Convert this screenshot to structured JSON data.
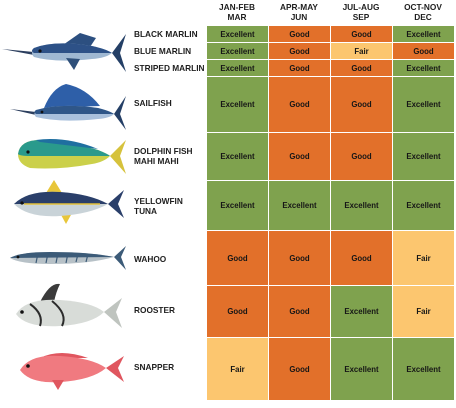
{
  "months": [
    {
      "line1": "JAN-FEB",
      "line2": "MAR"
    },
    {
      "line1": "APR-MAY",
      "line2": "JUN"
    },
    {
      "line1": "JUL-AUG",
      "line2": "SEP"
    },
    {
      "line1": "OCT-NOV",
      "line2": "DEC"
    }
  ],
  "species": [
    {
      "name": "BLACK MARLIN",
      "ratings": [
        "Excellent",
        "Good",
        "Good",
        "Excellent"
      ]
    },
    {
      "name": "BLUE MARLIN",
      "ratings": [
        "Excellent",
        "Good",
        "Fair",
        "Good"
      ]
    },
    {
      "name": "STRIPED MARLIN",
      "ratings": [
        "Excellent",
        "Good",
        "Good",
        "Excellent"
      ]
    },
    {
      "name": "SAILFISH",
      "ratings": [
        "Excellent",
        "Good",
        "Good",
        "Excellent"
      ]
    },
    {
      "name": "DOLPHIN FISH",
      "name2": "MAHI MAHI",
      "ratings": [
        "Excellent",
        "Good",
        "Good",
        "Excellent"
      ]
    },
    {
      "name": "YELLOWFIN",
      "name2": "TUNA",
      "ratings": [
        "Excellent",
        "Excellent",
        "Excellent",
        "Excellent"
      ]
    },
    {
      "name": "WAHOO",
      "ratings": [
        "Good",
        "Good",
        "Good",
        "Fair"
      ]
    },
    {
      "name": "ROOSTER",
      "ratings": [
        "Good",
        "Good",
        "Excellent",
        "Fair"
      ]
    },
    {
      "name": "SNAPPER",
      "ratings": [
        "Fair",
        "Good",
        "Excellent",
        "Excellent"
      ]
    }
  ],
  "colors": {
    "Excellent": "#7fa24e",
    "Good": "#e2702a",
    "Fair": "#fcc66f"
  },
  "illustrations": [
    "blue-marlin-illustration",
    "sailfish-illustration",
    "mahi-mahi-illustration",
    "yellowfin-tuna-illustration",
    "wahoo-illustration",
    "roosterfish-illustration",
    "red-snapper-illustration"
  ]
}
